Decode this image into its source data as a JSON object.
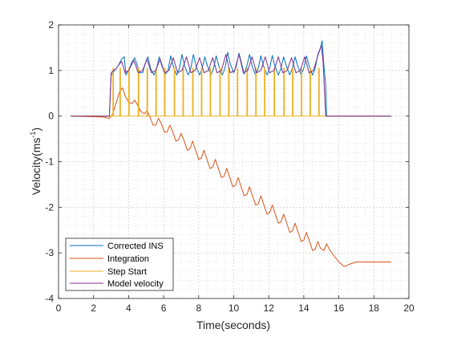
{
  "chart_data": {
    "type": "line",
    "xlabel": "Time(seconds)",
    "ylabel_main": "Velocity(ms",
    "ylabel_sup": "-1",
    "ylabel_close": ")",
    "xlim": [
      0,
      20
    ],
    "ylim": [
      -4,
      2
    ],
    "x_ticks": [
      0,
      2,
      4,
      6,
      8,
      10,
      12,
      14,
      16,
      18,
      20
    ],
    "x_tick_labels": [
      "0",
      "2",
      "4",
      "6",
      "8",
      "10",
      "12",
      "14",
      "16",
      "18",
      "20"
    ],
    "y_ticks": [
      -4,
      -3,
      -2,
      -1,
      0,
      1,
      2
    ],
    "y_tick_labels": [
      "-4",
      "-3",
      "-2",
      "-1",
      "0",
      "1",
      "2"
    ],
    "grid": true,
    "minor_grid": true,
    "legend_position": "bottom-left",
    "series": [
      {
        "name": "Corrected INS",
        "color": "#0072BD",
        "points": [
          [
            0.7,
            0.0
          ],
          [
            2.9,
            0.0
          ],
          [
            3.0,
            0.9
          ],
          [
            3.2,
            1.0
          ],
          [
            3.4,
            1.1
          ],
          [
            3.6,
            1.25
          ],
          [
            3.75,
            1.3
          ],
          [
            3.85,
            0.9
          ],
          [
            4.0,
            1.0
          ],
          [
            4.2,
            1.2
          ],
          [
            4.35,
            1.28
          ],
          [
            4.5,
            1.1
          ],
          [
            4.65,
            0.95
          ],
          [
            4.8,
            0.95
          ],
          [
            4.95,
            1.15
          ],
          [
            5.1,
            1.3
          ],
          [
            5.25,
            1.05
          ],
          [
            5.45,
            0.9
          ],
          [
            5.6,
            1.05
          ],
          [
            5.75,
            1.3
          ],
          [
            5.9,
            1.1
          ],
          [
            6.1,
            0.92
          ],
          [
            6.25,
            1.0
          ],
          [
            6.4,
            1.32
          ],
          [
            6.55,
            1.1
          ],
          [
            6.75,
            0.9
          ],
          [
            6.9,
            1.05
          ],
          [
            7.05,
            1.35
          ],
          [
            7.2,
            1.1
          ],
          [
            7.4,
            0.9
          ],
          [
            7.55,
            1.05
          ],
          [
            7.7,
            1.35
          ],
          [
            7.85,
            1.1
          ],
          [
            8.05,
            0.9
          ],
          [
            8.2,
            1.05
          ],
          [
            8.35,
            1.3
          ],
          [
            8.5,
            1.1
          ],
          [
            8.7,
            0.9
          ],
          [
            8.85,
            1.05
          ],
          [
            9.0,
            1.32
          ],
          [
            9.15,
            1.1
          ],
          [
            9.35,
            0.9
          ],
          [
            9.5,
            1.05
          ],
          [
            9.65,
            1.4
          ],
          [
            9.8,
            1.15
          ],
          [
            10.0,
            0.95
          ],
          [
            10.15,
            1.1
          ],
          [
            10.3,
            1.38
          ],
          [
            10.45,
            1.15
          ],
          [
            10.6,
            0.92
          ],
          [
            10.75,
            1.1
          ],
          [
            10.9,
            1.35
          ],
          [
            11.05,
            1.1
          ],
          [
            11.25,
            0.9
          ],
          [
            11.4,
            1.05
          ],
          [
            11.55,
            1.32
          ],
          [
            11.7,
            1.1
          ],
          [
            11.9,
            0.9
          ],
          [
            12.05,
            1.05
          ],
          [
            12.2,
            1.33
          ],
          [
            12.35,
            1.1
          ],
          [
            12.55,
            0.9
          ],
          [
            12.7,
            1.05
          ],
          [
            12.85,
            1.3
          ],
          [
            13.0,
            1.1
          ],
          [
            13.2,
            0.9
          ],
          [
            13.35,
            1.05
          ],
          [
            13.5,
            1.3
          ],
          [
            13.65,
            1.1
          ],
          [
            13.85,
            0.9
          ],
          [
            14.0,
            1.05
          ],
          [
            14.15,
            1.32
          ],
          [
            14.3,
            1.1
          ],
          [
            14.5,
            0.9
          ],
          [
            14.65,
            1.05
          ],
          [
            14.8,
            1.35
          ],
          [
            14.95,
            1.5
          ],
          [
            15.05,
            1.65
          ],
          [
            15.15,
            1.1
          ],
          [
            15.25,
            0.7
          ],
          [
            15.3,
            0.0
          ],
          [
            19.0,
            0.0
          ]
        ]
      },
      {
        "name": "Integration",
        "color": "#D95319",
        "points": [
          [
            0.7,
            0.0
          ],
          [
            2.5,
            -0.02
          ],
          [
            2.9,
            -0.05
          ],
          [
            3.1,
            0.05
          ],
          [
            3.3,
            0.3
          ],
          [
            3.5,
            0.55
          ],
          [
            3.65,
            0.62
          ],
          [
            3.8,
            0.45
          ],
          [
            4.0,
            0.3
          ],
          [
            4.2,
            0.28
          ],
          [
            4.35,
            0.35
          ],
          [
            4.5,
            0.25
          ],
          [
            4.7,
            0.1
          ],
          [
            4.9,
            0.05
          ],
          [
            5.05,
            0.12
          ],
          [
            5.2,
            0.0
          ],
          [
            5.4,
            -0.2
          ],
          [
            5.55,
            -0.2
          ],
          [
            5.7,
            -0.05
          ],
          [
            5.85,
            -0.15
          ],
          [
            6.05,
            -0.35
          ],
          [
            6.2,
            -0.35
          ],
          [
            6.35,
            -0.2
          ],
          [
            6.5,
            -0.32
          ],
          [
            6.7,
            -0.55
          ],
          [
            6.85,
            -0.52
          ],
          [
            7.0,
            -0.38
          ],
          [
            7.15,
            -0.52
          ],
          [
            7.35,
            -0.75
          ],
          [
            7.5,
            -0.72
          ],
          [
            7.65,
            -0.55
          ],
          [
            7.8,
            -0.72
          ],
          [
            8.0,
            -0.95
          ],
          [
            8.15,
            -0.92
          ],
          [
            8.3,
            -0.75
          ],
          [
            8.45,
            -0.92
          ],
          [
            8.65,
            -1.15
          ],
          [
            8.8,
            -1.12
          ],
          [
            8.95,
            -0.95
          ],
          [
            9.1,
            -1.12
          ],
          [
            9.3,
            -1.35
          ],
          [
            9.45,
            -1.32
          ],
          [
            9.6,
            -1.15
          ],
          [
            9.75,
            -1.32
          ],
          [
            9.95,
            -1.55
          ],
          [
            10.1,
            -1.52
          ],
          [
            10.25,
            -1.35
          ],
          [
            10.4,
            -1.52
          ],
          [
            10.6,
            -1.75
          ],
          [
            10.75,
            -1.72
          ],
          [
            10.9,
            -1.55
          ],
          [
            11.05,
            -1.72
          ],
          [
            11.25,
            -1.95
          ],
          [
            11.4,
            -1.92
          ],
          [
            11.55,
            -1.75
          ],
          [
            11.7,
            -1.92
          ],
          [
            11.9,
            -2.15
          ],
          [
            12.05,
            -2.12
          ],
          [
            12.2,
            -1.95
          ],
          [
            12.35,
            -2.12
          ],
          [
            12.55,
            -2.35
          ],
          [
            12.7,
            -2.32
          ],
          [
            12.85,
            -2.15
          ],
          [
            13.0,
            -2.32
          ],
          [
            13.2,
            -2.55
          ],
          [
            13.35,
            -2.52
          ],
          [
            13.5,
            -2.35
          ],
          [
            13.65,
            -2.52
          ],
          [
            13.85,
            -2.75
          ],
          [
            14.0,
            -2.72
          ],
          [
            14.15,
            -2.55
          ],
          [
            14.3,
            -2.72
          ],
          [
            14.5,
            -2.95
          ],
          [
            14.65,
            -2.92
          ],
          [
            14.8,
            -2.75
          ],
          [
            14.95,
            -2.9
          ],
          [
            15.15,
            -2.95
          ],
          [
            15.3,
            -2.8
          ],
          [
            15.5,
            -2.95
          ],
          [
            15.7,
            -3.05
          ],
          [
            16.0,
            -3.2
          ],
          [
            16.3,
            -3.3
          ],
          [
            16.6,
            -3.25
          ],
          [
            17.0,
            -3.2
          ],
          [
            19.0,
            -3.2
          ]
        ]
      },
      {
        "name": "Step Start",
        "color": "#EDB120",
        "baseline": 0,
        "spike_height": 1.05,
        "spikes": [
          3.1,
          3.5,
          4.0,
          4.55,
          5.05,
          5.55,
          6.05,
          6.6,
          7.1,
          7.65,
          8.15,
          8.65,
          9.2,
          9.7,
          10.2,
          10.75,
          11.25,
          11.75,
          12.3,
          12.85,
          13.35,
          13.85,
          14.35,
          14.85
        ],
        "xrange": [
          0.7,
          19.0
        ]
      },
      {
        "name": "Model velocity",
        "color": "#7E2F8E",
        "points": [
          [
            0.7,
            0.0
          ],
          [
            2.9,
            0.0
          ],
          [
            3.0,
            0.95
          ],
          [
            3.3,
            1.05
          ],
          [
            3.6,
            1.2
          ],
          [
            3.8,
            0.95
          ],
          [
            4.0,
            1.0
          ],
          [
            4.3,
            1.22
          ],
          [
            4.55,
            0.95
          ],
          [
            4.8,
            1.0
          ],
          [
            5.05,
            1.25
          ],
          [
            5.3,
            0.95
          ],
          [
            5.55,
            1.0
          ],
          [
            5.8,
            1.25
          ],
          [
            6.05,
            0.95
          ],
          [
            6.3,
            1.0
          ],
          [
            6.55,
            1.28
          ],
          [
            6.8,
            0.95
          ],
          [
            7.05,
            1.0
          ],
          [
            7.3,
            1.3
          ],
          [
            7.55,
            0.95
          ],
          [
            7.8,
            1.0
          ],
          [
            8.05,
            1.28
          ],
          [
            8.3,
            0.95
          ],
          [
            8.55,
            1.0
          ],
          [
            8.8,
            1.28
          ],
          [
            9.05,
            0.95
          ],
          [
            9.3,
            1.0
          ],
          [
            9.55,
            1.35
          ],
          [
            9.8,
            0.95
          ],
          [
            10.05,
            1.0
          ],
          [
            10.3,
            1.35
          ],
          [
            10.55,
            0.95
          ],
          [
            10.8,
            1.0
          ],
          [
            11.05,
            1.3
          ],
          [
            11.3,
            0.95
          ],
          [
            11.55,
            1.0
          ],
          [
            11.8,
            1.3
          ],
          [
            12.05,
            0.95
          ],
          [
            12.3,
            1.0
          ],
          [
            12.55,
            1.3
          ],
          [
            12.8,
            0.95
          ],
          [
            13.05,
            1.0
          ],
          [
            13.3,
            1.28
          ],
          [
            13.55,
            0.95
          ],
          [
            13.8,
            1.0
          ],
          [
            14.05,
            1.3
          ],
          [
            14.3,
            0.95
          ],
          [
            14.55,
            1.0
          ],
          [
            14.8,
            1.32
          ],
          [
            15.0,
            1.55
          ],
          [
            15.1,
            1.2
          ],
          [
            15.25,
            0.0
          ],
          [
            19.0,
            0.0
          ]
        ]
      }
    ]
  }
}
